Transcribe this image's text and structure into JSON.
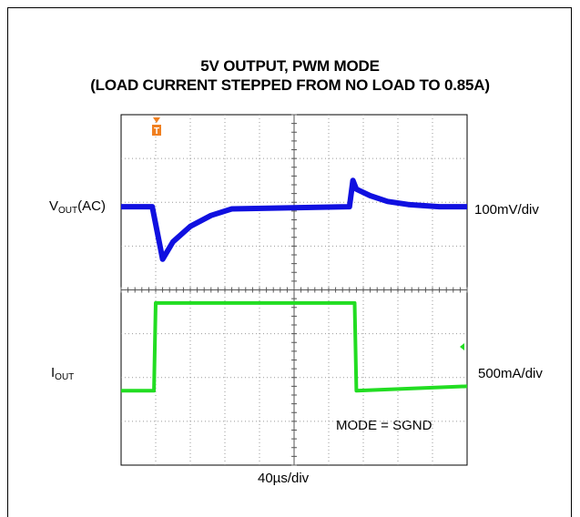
{
  "chart_data": {
    "type": "line",
    "title": "5V OUTPUT, PWM MODE",
    "subtitle": "(LOAD CURRENT STEPPED FROM NO LOAD TO 0.85A)",
    "xlabel": "40µs/div",
    "grid": true,
    "x_divisions": 10,
    "y_divisions": 8,
    "channels": [
      {
        "label_main": "V",
        "label_sub": "OUT",
        "label_suffix": "(AC)",
        "scale": "100mV/div",
        "color": "#1010e0",
        "x": [
          0,
          0.9,
          1.0,
          1.2,
          1.5,
          2.0,
          2.6,
          3.2,
          6.6,
          6.7,
          6.8,
          7.2,
          7.7,
          8.3,
          9.2,
          10
        ],
        "y": [
          5.9,
          5.9,
          5.5,
          4.7,
          5.1,
          5.45,
          5.7,
          5.85,
          5.9,
          6.5,
          6.3,
          6.15,
          6.02,
          5.95,
          5.9,
          5.9
        ]
      },
      {
        "label_main": "I",
        "label_sub": "OUT",
        "label_suffix": "",
        "scale": "500mA/div",
        "color": "#22dd22",
        "x": [
          0,
          0.95,
          1.0,
          6.75,
          6.8,
          10
        ],
        "y": [
          1.7,
          1.7,
          3.7,
          3.7,
          1.7,
          1.8
        ]
      }
    ],
    "annotation": "MODE = SGND",
    "trigger_marker": "T"
  }
}
